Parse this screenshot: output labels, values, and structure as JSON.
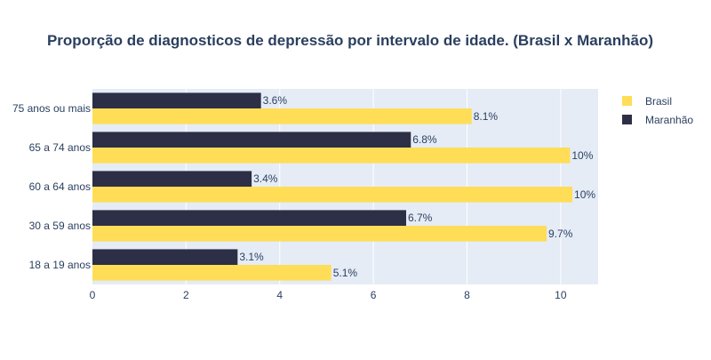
{
  "chart_data": {
    "type": "bar",
    "orientation": "horizontal",
    "title": "Proporção de diagnosticos de depressão por intervalo de idade. (Brasil x Maranhão)",
    "xlabel": "",
    "ylabel": "",
    "categories": [
      "18 a 19 anos",
      "30 a 59 anos",
      "60 a 64 anos",
      "65 a 74 anos",
      "75 anos ou mais"
    ],
    "series": [
      {
        "name": "Brasil",
        "color": "#FFDD57",
        "values": [
          5.1,
          9.7,
          10.25,
          10.2,
          8.1
        ],
        "labels": [
          "5.1%",
          "9.7%",
          "10%",
          "10%",
          "8.1%"
        ]
      },
      {
        "name": "Maranhão",
        "color": "#2D2F46",
        "values": [
          3.1,
          6.7,
          3.4,
          6.8,
          3.6
        ],
        "labels": [
          "3.1%",
          "6.7%",
          "3.4%",
          "6.8%",
          "3.6%"
        ]
      }
    ],
    "xlim": [
      0,
      10.8
    ],
    "xticks": [
      0,
      2,
      4,
      6,
      8,
      10
    ],
    "xtick_labels": [
      "0",
      "2",
      "4",
      "6",
      "8",
      "10"
    ],
    "grid": true,
    "legend_position": "top-right",
    "plot_background": "#E5ECF6",
    "text_color": "#2A3F5F"
  }
}
